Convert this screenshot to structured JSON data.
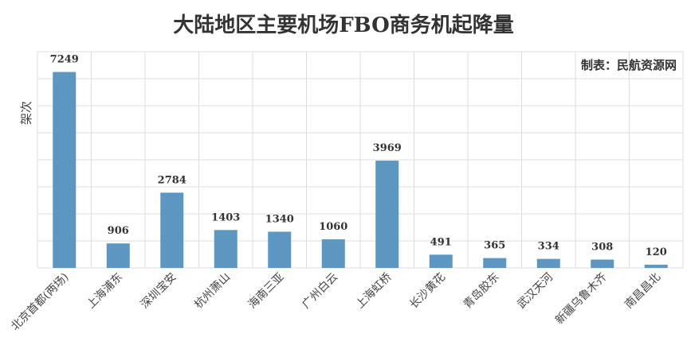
{
  "chart_data": {
    "type": "bar",
    "title": "大陆地区主要机场FBO商务机起降量",
    "ylabel": "架次",
    "xlabel": "",
    "annotation": "制表：民航资源网",
    "categories": [
      "北京首都(两场)",
      "上海浦东",
      "深圳宝安",
      "杭州萧山",
      "海南三亚",
      "广州白云",
      "上海虹桥",
      "长沙黄花",
      "青岛胶东",
      "武汉天河",
      "新疆乌鲁木齐",
      "南昌昌北"
    ],
    "values": [
      7249,
      906,
      2784,
      1403,
      1340,
      1060,
      3969,
      491,
      365,
      334,
      308,
      120
    ],
    "ylim": [
      0,
      8000
    ],
    "grid": true,
    "bar_color": "#5b97c0"
  }
}
